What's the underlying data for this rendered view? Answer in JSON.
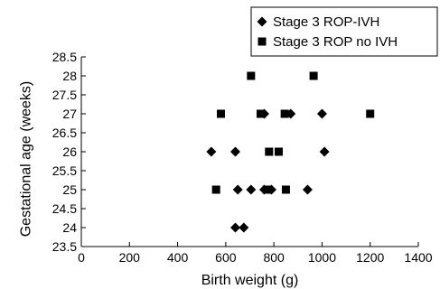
{
  "chart_data": {
    "type": "scatter",
    "title": "",
    "xlabel": "Birth weight (g)",
    "ylabel": "Gestational age (weeks)",
    "xlim": [
      0,
      1400
    ],
    "ylim": [
      23.5,
      28.5
    ],
    "x_ticks": [
      "0",
      "200",
      "400",
      "600",
      "800",
      "1000",
      "1200",
      "1400"
    ],
    "y_ticks": [
      "23.5",
      "24",
      "24.5",
      "25",
      "25.5",
      "26",
      "26.5",
      "27",
      "27.5",
      "28",
      "28.5"
    ],
    "grid": false,
    "legend_position": "top-right",
    "series": [
      {
        "name": "Stage 3 ROP-IVH",
        "marker": "diamond",
        "color": "#000000",
        "points": [
          [
            640,
            24
          ],
          [
            675,
            24
          ],
          [
            650,
            25
          ],
          [
            705,
            25
          ],
          [
            760,
            25
          ],
          [
            790,
            25
          ],
          [
            940,
            25
          ],
          [
            540,
            26
          ],
          [
            640,
            26
          ],
          [
            1010,
            26
          ],
          [
            760,
            27
          ],
          [
            870,
            27
          ],
          [
            1000,
            27
          ]
        ]
      },
      {
        "name": "Stage 3 ROP no IVH",
        "marker": "square",
        "color": "#000000",
        "points": [
          [
            560,
            25
          ],
          [
            770,
            25
          ],
          [
            850,
            25
          ],
          [
            780,
            26
          ],
          [
            820,
            26
          ],
          [
            580,
            27
          ],
          [
            745,
            27
          ],
          [
            845,
            27
          ],
          [
            1200,
            27
          ],
          [
            705,
            28
          ],
          [
            965,
            28
          ]
        ]
      }
    ]
  }
}
